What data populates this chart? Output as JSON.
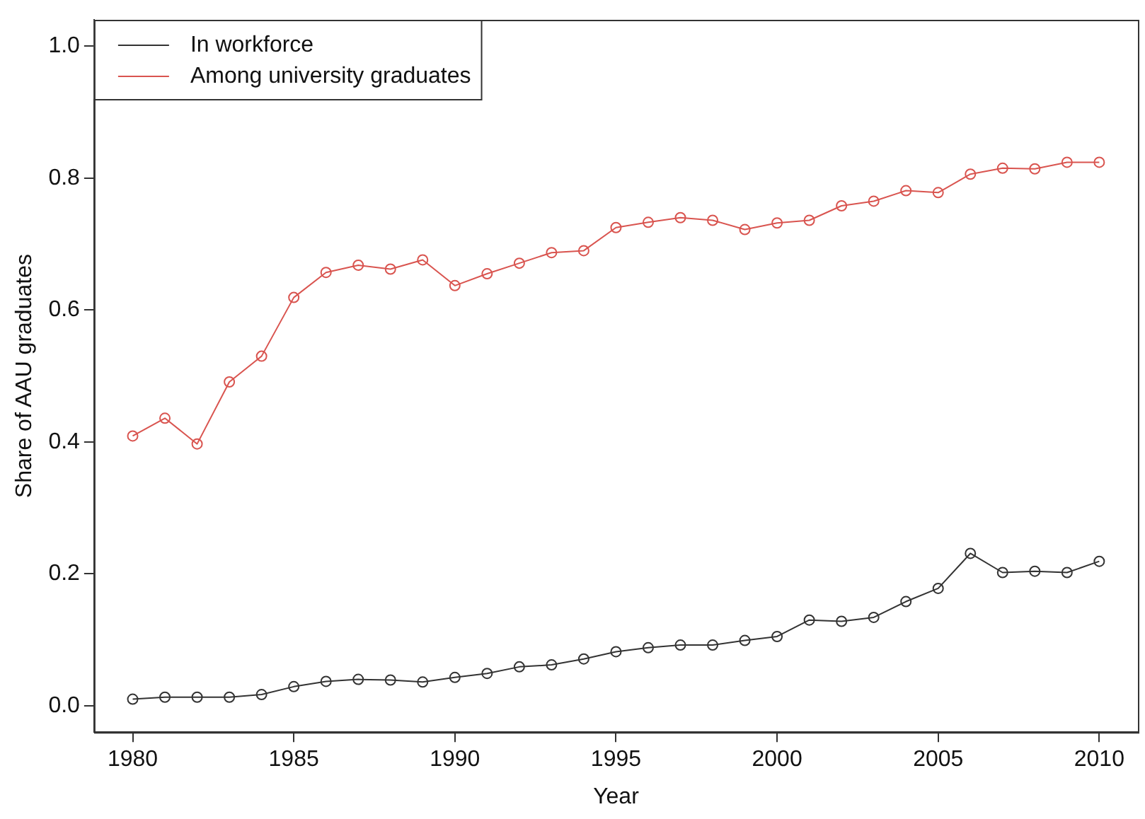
{
  "chart_data": {
    "type": "line",
    "xlabel": "Year",
    "ylabel": "Share of AAU graduates",
    "x": [
      1980,
      1981,
      1982,
      1983,
      1984,
      1985,
      1986,
      1987,
      1988,
      1989,
      1990,
      1991,
      1992,
      1993,
      1994,
      1995,
      1996,
      1997,
      1998,
      1999,
      2000,
      2001,
      2002,
      2003,
      2004,
      2005,
      2006,
      2007,
      2008,
      2009,
      2010
    ],
    "series": [
      {
        "name": "In workforce",
        "color": "#333333",
        "values": [
          0.01,
          0.013,
          0.013,
          0.013,
          0.017,
          0.029,
          0.037,
          0.04,
          0.039,
          0.036,
          0.043,
          0.049,
          0.059,
          0.062,
          0.071,
          0.082,
          0.088,
          0.092,
          0.092,
          0.099,
          0.105,
          0.13,
          0.128,
          0.134,
          0.158,
          0.178,
          0.231,
          0.202,
          0.204,
          0.202,
          0.219
        ]
      },
      {
        "name": "Among university graduates",
        "color": "#d9544f",
        "values": [
          0.409,
          0.436,
          0.397,
          0.491,
          0.53,
          0.619,
          0.657,
          0.668,
          0.662,
          0.676,
          0.637,
          0.655,
          0.671,
          0.687,
          0.69,
          0.725,
          0.733,
          0.74,
          0.736,
          0.722,
          0.732,
          0.736,
          0.758,
          0.765,
          0.781,
          0.778,
          0.806,
          0.815,
          0.814,
          0.824,
          0.824
        ]
      }
    ],
    "xlim": [
      1978.8,
      2011.2
    ],
    "xticks": [
      1980,
      1985,
      1990,
      1995,
      2000,
      2005,
      2010
    ],
    "ylim": [
      -0.04,
      1.04
    ],
    "yticks": [
      {
        "value": 0,
        "label": "0.0"
      },
      {
        "value": 0.2,
        "label": "0.2"
      },
      {
        "value": 0.4,
        "label": "0.4"
      },
      {
        "value": 0.6,
        "label": "0.6"
      },
      {
        "value": 0.8,
        "label": "0.8"
      },
      {
        "value": 1,
        "label": "1.0"
      }
    ],
    "grid": false,
    "legend": "top left",
    "marker": "circle",
    "line_style": "solid"
  }
}
